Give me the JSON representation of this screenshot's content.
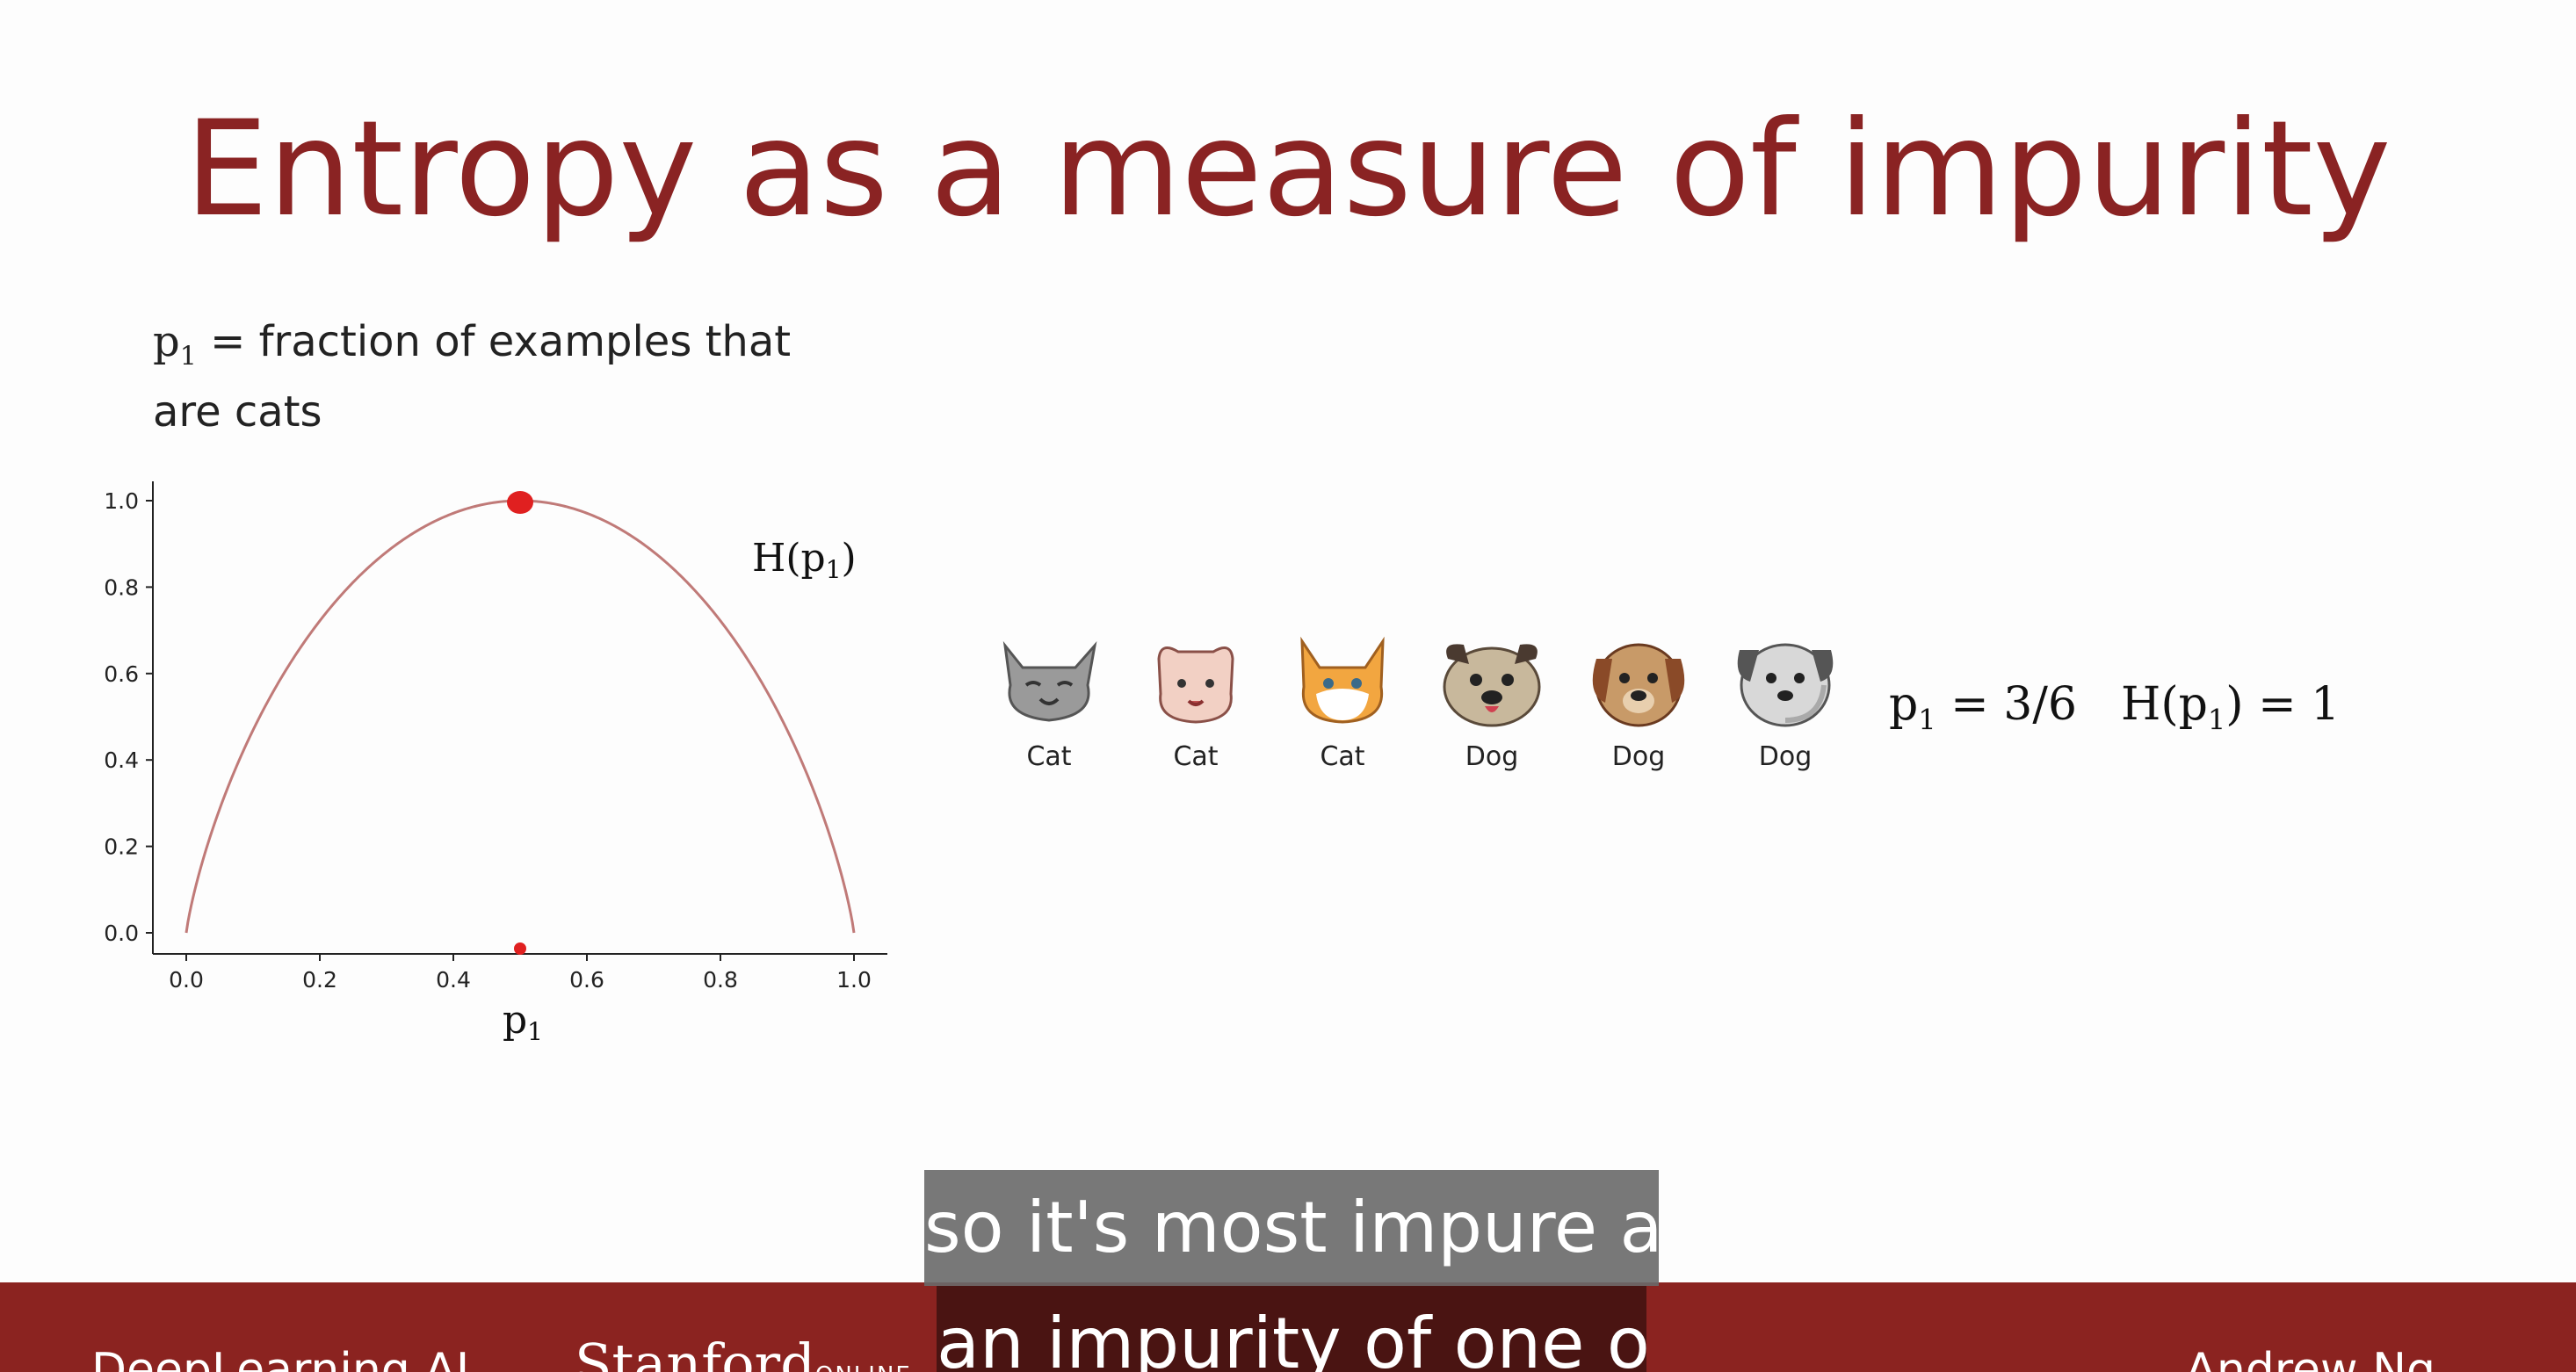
{
  "slide": {
    "title": "Entropy as a measure of impurity",
    "definition_line1_prefix": "p",
    "definition_line1_sub": "1",
    "definition_line1_rest": " = fraction of examples that",
    "definition_line2": "are cats"
  },
  "chart_data": {
    "type": "line",
    "series": [
      {
        "name": "H(p1)",
        "function": "binary-entropy",
        "color": "#c07a78"
      }
    ],
    "curve_label_main": "H(p",
    "curve_label_sub": "1",
    "curve_label_end": ")",
    "xlabel_main": "p",
    "xlabel_sub": "1",
    "xlim": [
      0,
      1
    ],
    "ylim": [
      0,
      1
    ],
    "x_ticks": [
      "0.0",
      "0.2",
      "0.4",
      "0.6",
      "0.8",
      "1.0"
    ],
    "y_ticks": [
      "0.0",
      "0.2",
      "0.4",
      "0.6",
      "0.8",
      "1.0"
    ],
    "highlight_point": {
      "x": 0.5,
      "y": 1.0,
      "color": "#e02020"
    },
    "highlight_x_marker": 0.5
  },
  "examples": [
    {
      "label": "Cat",
      "icon": "gray-cat-icon"
    },
    {
      "label": "Cat",
      "icon": "pink-cat-icon"
    },
    {
      "label": "Cat",
      "icon": "orange-cat-icon"
    },
    {
      "label": "Dog",
      "icon": "pug-dog-icon"
    },
    {
      "label": "Dog",
      "icon": "brown-dog-icon"
    },
    {
      "label": "Dog",
      "icon": "gray-dog-icon"
    }
  ],
  "formula": {
    "p_main": "p",
    "p_sub": "1",
    "p_rest": " = 3/6",
    "h_main": "H(p",
    "h_sub": "1",
    "h_rest": ") = 1"
  },
  "footer": {
    "brand_left": "DeepLearning.AI",
    "brand_stanford": "Stanford",
    "brand_online": "ONLINE",
    "author": "Andrew Ng",
    "bg_color": "#8b2320"
  },
  "captions": {
    "line1": "so it's most impure as",
    "line2": "an impurity of one or"
  }
}
